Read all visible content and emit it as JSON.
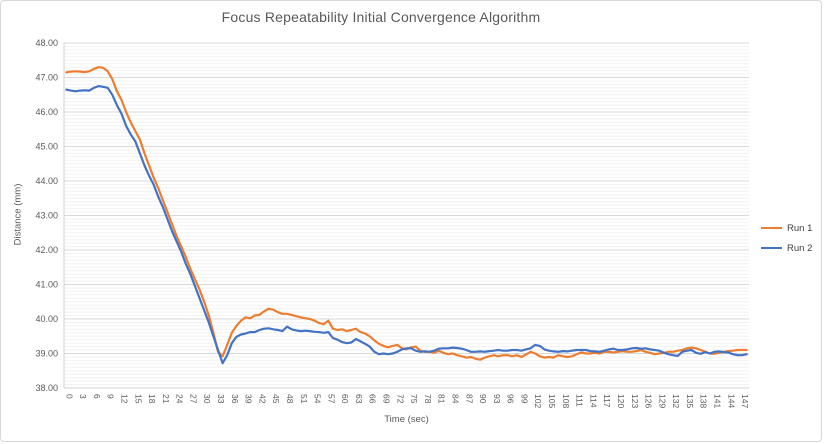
{
  "window": {
    "title": "Focus Repeatability chart",
    "background": "#ffffff",
    "border_color": "#d8d8d8"
  },
  "colors": {
    "run1": "#ED7D31",
    "run2": "#4472C4",
    "grid_major": "#d9d9d9",
    "grid_minor": "#f2f2f2",
    "axis_line": "#d0d0d0",
    "text": "#595959"
  },
  "chart_data": {
    "type": "line",
    "title": "Focus Repeatability Initial Convergence Algorithm",
    "xlabel": "Time (sec)",
    "ylabel": "Distance (mm)",
    "ylim": [
      38,
      48
    ],
    "y_major_step": 1,
    "y_minor_step": 0.1,
    "grid": true,
    "legend_position": "right",
    "x_start": 0,
    "x_step": 1,
    "x_ticks": [
      0,
      3,
      6,
      9,
      12,
      15,
      18,
      21,
      24,
      27,
      30,
      33,
      36,
      39,
      42,
      45,
      48,
      51,
      54,
      57,
      60,
      63,
      66,
      69,
      72,
      75,
      78,
      81,
      84,
      87,
      90,
      93,
      96,
      99,
      102,
      105,
      108,
      111,
      114,
      117,
      120,
      123,
      126,
      129,
      132,
      135,
      138,
      141,
      144,
      147
    ],
    "series": [
      {
        "name": "Run 1",
        "color": "#ED7D31",
        "values": [
          47.15,
          47.17,
          47.18,
          47.17,
          47.16,
          47.18,
          47.25,
          47.3,
          47.28,
          47.18,
          46.95,
          46.6,
          46.35,
          46.0,
          45.7,
          45.45,
          45.2,
          44.8,
          44.45,
          44.1,
          43.8,
          43.45,
          43.1,
          42.75,
          42.4,
          42.1,
          41.8,
          41.45,
          41.15,
          40.85,
          40.5,
          40.1,
          39.6,
          39.05,
          38.92,
          39.25,
          39.6,
          39.8,
          39.95,
          40.05,
          40.02,
          40.1,
          40.12,
          40.22,
          40.3,
          40.27,
          40.2,
          40.15,
          40.15,
          40.12,
          40.08,
          40.05,
          40.02,
          40.0,
          39.95,
          39.88,
          39.85,
          39.95,
          39.72,
          39.68,
          39.7,
          39.65,
          39.68,
          39.72,
          39.62,
          39.58,
          39.5,
          39.38,
          39.28,
          39.22,
          39.18,
          39.22,
          39.25,
          39.15,
          39.12,
          39.18,
          39.2,
          39.08,
          39.05,
          39.05,
          39.02,
          39.08,
          39.02,
          38.98,
          39.0,
          38.95,
          38.92,
          38.88,
          38.9,
          38.85,
          38.82,
          38.88,
          38.92,
          38.95,
          38.92,
          38.95,
          38.95,
          38.92,
          38.95,
          38.9,
          38.97,
          39.05,
          39.0,
          38.92,
          38.88,
          38.9,
          38.88,
          38.95,
          38.92,
          38.9,
          38.92,
          38.98,
          39.03,
          39.0,
          39.0,
          39.02,
          39.0,
          39.05,
          39.05,
          39.03,
          39.05,
          39.07,
          39.05,
          39.05,
          39.07,
          39.1,
          39.05,
          39.02,
          38.98,
          39.0,
          39.02,
          39.05,
          39.05,
          39.08,
          39.1,
          39.15,
          39.17,
          39.15,
          39.1,
          39.05,
          39.0,
          38.99,
          39.02,
          39.05,
          39.07,
          39.08,
          39.1,
          39.1,
          39.1
        ]
      },
      {
        "name": "Run 2",
        "color": "#4472C4",
        "values": [
          46.65,
          46.62,
          46.6,
          46.62,
          46.63,
          46.62,
          46.7,
          46.75,
          46.73,
          46.7,
          46.5,
          46.2,
          45.95,
          45.6,
          45.35,
          45.15,
          44.8,
          44.45,
          44.15,
          43.9,
          43.55,
          43.25,
          42.9,
          42.55,
          42.25,
          41.95,
          41.6,
          41.3,
          40.95,
          40.6,
          40.25,
          39.9,
          39.5,
          39.1,
          38.72,
          38.95,
          39.3,
          39.48,
          39.55,
          39.58,
          39.62,
          39.62,
          39.68,
          39.72,
          39.73,
          39.7,
          39.68,
          39.65,
          39.78,
          39.7,
          39.67,
          39.65,
          39.66,
          39.65,
          39.63,
          39.62,
          39.6,
          39.62,
          39.45,
          39.4,
          39.33,
          39.3,
          39.32,
          39.42,
          39.35,
          39.28,
          39.2,
          39.05,
          38.98,
          39.0,
          38.98,
          39.0,
          39.05,
          39.12,
          39.15,
          39.15,
          39.08,
          39.05,
          39.06,
          39.05,
          39.08,
          39.14,
          39.15,
          39.15,
          39.17,
          39.16,
          39.14,
          39.1,
          39.05,
          39.05,
          39.06,
          39.05,
          39.07,
          39.08,
          39.1,
          39.08,
          39.08,
          39.1,
          39.1,
          39.08,
          39.12,
          39.15,
          39.25,
          39.22,
          39.12,
          39.08,
          39.06,
          39.05,
          39.07,
          39.06,
          39.08,
          39.1,
          39.1,
          39.1,
          39.07,
          39.06,
          39.05,
          39.08,
          39.12,
          39.14,
          39.1,
          39.1,
          39.12,
          39.15,
          39.16,
          39.14,
          39.15,
          39.12,
          39.1,
          39.08,
          39.02,
          38.98,
          38.95,
          38.93,
          39.05,
          39.08,
          39.1,
          39.02,
          38.99,
          39.04,
          39.0,
          39.05,
          39.06,
          39.04,
          39.03,
          38.98,
          38.95,
          38.95,
          38.98
        ]
      }
    ]
  }
}
